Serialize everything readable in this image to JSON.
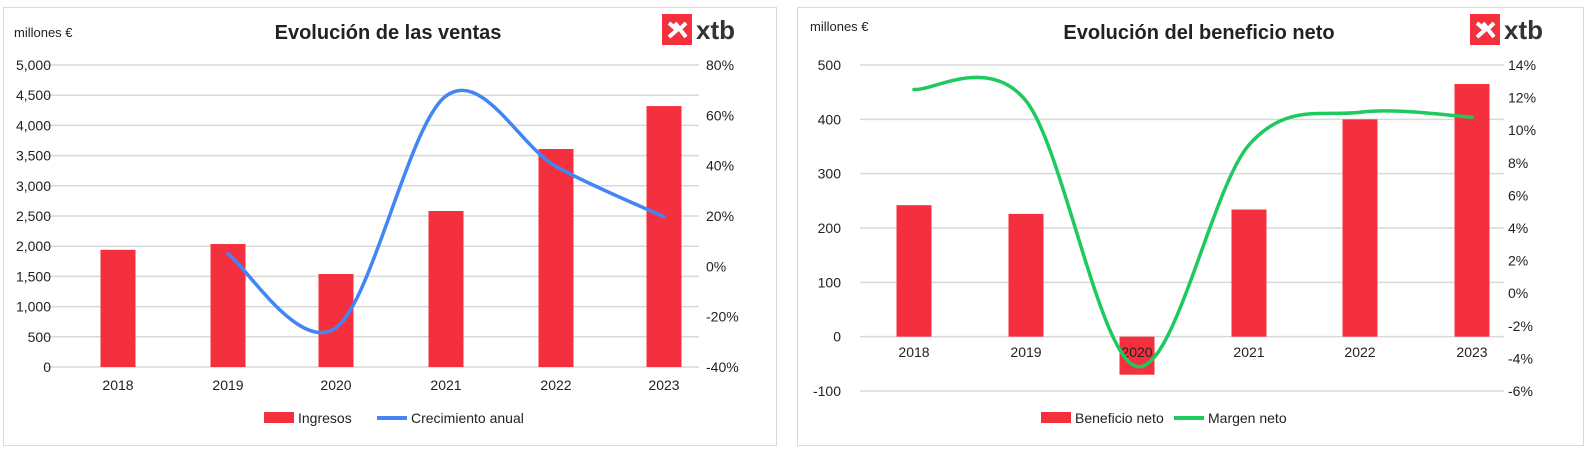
{
  "chart_data": [
    {
      "type": "bar+line",
      "title": "Evolución de las ventas",
      "unit_label": "millones €",
      "categories": [
        "2018",
        "2019",
        "2020",
        "2021",
        "2022",
        "2023"
      ],
      "y_left": {
        "range": [
          0,
          5000
        ],
        "ticks": [
          "0",
          "500",
          "1,000",
          "1,500",
          "2,000",
          "2,500",
          "3,000",
          "3,500",
          "4,000",
          "4,500",
          "5,000"
        ]
      },
      "y_right": {
        "range": [
          -40,
          80
        ],
        "ticks": [
          "-40%",
          "-20%",
          "0%",
          "20%",
          "40%",
          "60%",
          "80%"
        ]
      },
      "series": [
        {
          "name": "Ingresos",
          "type": "bar",
          "axis": "left",
          "color": "#f5303e",
          "values": [
            1940,
            2036,
            1540,
            2583,
            3609,
            4320
          ]
        },
        {
          "name": "Crecimiento anual",
          "type": "line",
          "axis": "right",
          "color": "#4285f4",
          "values": [
            null,
            5,
            -24.4,
            67.7,
            39.7,
            19.7
          ]
        }
      ],
      "grid": true,
      "legend": "bottom"
    },
    {
      "type": "bar+line",
      "title": "Evolución del beneficio neto",
      "unit_label": "millones €",
      "categories": [
        "2018",
        "2019",
        "2020",
        "2021",
        "2022",
        "2023"
      ],
      "y_left": {
        "range": [
          -100,
          500
        ],
        "ticks": [
          "-100",
          "0",
          "100",
          "200",
          "300",
          "400",
          "500"
        ]
      },
      "y_right": {
        "range": [
          -6,
          14
        ],
        "ticks": [
          "-6%",
          "-4%",
          "-2%",
          "0%",
          "2%",
          "4%",
          "6%",
          "8%",
          "10%",
          "12%",
          "14%"
        ]
      },
      "series": [
        {
          "name": "Beneficio neto",
          "type": "bar",
          "axis": "left",
          "color": "#f5303e",
          "values": [
            242,
            226,
            -70,
            234,
            400,
            465
          ]
        },
        {
          "name": "Margen neto",
          "type": "line",
          "axis": "right",
          "color": "#1ec95e",
          "values": [
            12.5,
            11.8,
            -4.5,
            9.1,
            11.1,
            10.8
          ]
        }
      ],
      "grid": true,
      "legend": "bottom"
    }
  ],
  "logo": {
    "text": "xtb",
    "color": "#f5303e"
  }
}
